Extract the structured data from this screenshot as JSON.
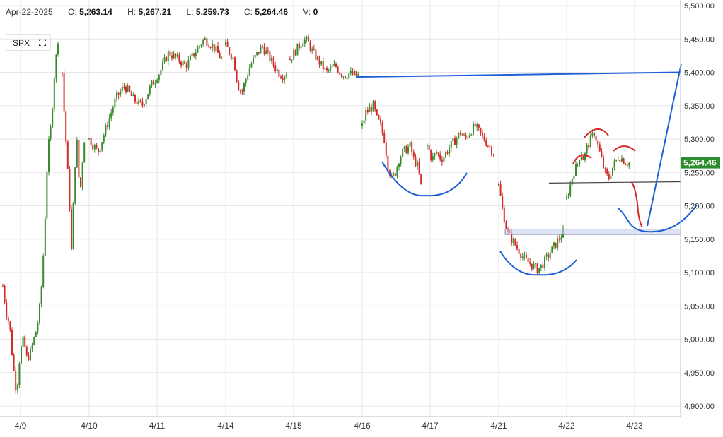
{
  "header": {
    "date": "Apr-22-2025",
    "open_label": "O:",
    "open": "5,263.14",
    "high_label": "H:",
    "high": "5,267.21",
    "low_label": "L:",
    "low": "5,259.73",
    "close_label": "C:",
    "close": "5,264.46",
    "volume_label": "V:",
    "volume": "0"
  },
  "symbol": {
    "name": "SPX",
    "expand_icon": "expand-icon"
  },
  "colors": {
    "up": "#3a8a2e",
    "down": "#d42a2a",
    "blue_annotation": "#1f5fd6",
    "red_annotation": "#d42a2a",
    "last_price_bg": "#2e8b2e",
    "grid": "#e6e6e6"
  },
  "chart_data": {
    "type": "candlestick",
    "ylim": [
      4890,
      5500
    ],
    "y_ticks": [
      "4,900.00",
      "4,950.00",
      "5,000.00",
      "5,050.00",
      "5,100.00",
      "5,150.00",
      "5,200.00",
      "5,250.00",
      "5,300.00",
      "5,350.00",
      "5,400.00",
      "5,450.00",
      "5,500.00"
    ],
    "x_ticks": [
      "4/9",
      "4/10",
      "4/11",
      "4/14",
      "4/15",
      "4/16",
      "4/17",
      "4/21",
      "4/22",
      "4/23"
    ],
    "last_price": "5,264.46",
    "grid": true,
    "session_closes": [
      {
        "session": "4/9",
        "points": [
          5080,
          5040,
          5020,
          4960,
          4920,
          4980,
          5000,
          4970,
          4980,
          5000,
          5020,
          5060,
          5150,
          5280,
          5320,
          5400,
          5450
        ]
      },
      {
        "session": "4/10",
        "points": [
          5400,
          5360,
          5330,
          5300,
          5280,
          5240,
          5220,
          5160,
          5130,
          5180,
          5220,
          5260,
          5300,
          5290,
          5250,
          5220,
          5230,
          5260,
          5280,
          5300
        ]
      },
      {
        "session": "4/11",
        "points": [
          5300,
          5280,
          5320,
          5360,
          5380,
          5360,
          5350,
          5380,
          5400,
          5430,
          5420,
          5410,
          5430,
          5450,
          5440,
          5420
        ]
      },
      {
        "session": "4/14",
        "points": [
          5440,
          5430,
          5420,
          5380,
          5370,
          5390,
          5410,
          5420,
          5430,
          5440,
          5430,
          5420,
          5410,
          5400,
          5395,
          5400
        ]
      },
      {
        "session": "4/15",
        "points": [
          5420,
          5430,
          5440,
          5450,
          5445,
          5430,
          5420,
          5410,
          5400,
          5405,
          5410,
          5400,
          5395,
          5398,
          5396,
          5395
        ]
      },
      {
        "session": "4/16",
        "points": [
          5320,
          5340,
          5345,
          5350,
          5330,
          5320,
          5300,
          5260,
          5240,
          5250,
          5270,
          5280,
          5285,
          5290,
          5270,
          5260,
          5230
        ]
      },
      {
        "session": "4/17",
        "points": [
          5290,
          5270,
          5280,
          5270,
          5280,
          5290,
          5300,
          5310,
          5300,
          5310,
          5320,
          5310,
          5300,
          5290,
          5280
        ]
      },
      {
        "session": "4/21",
        "points": [
          5230,
          5190,
          5160,
          5150,
          5140,
          5130,
          5120,
          5115,
          5110,
          5105,
          5110,
          5120,
          5130,
          5140,
          5150,
          5160
        ]
      },
      {
        "session": "4/22",
        "points": [
          5210,
          5230,
          5250,
          5260,
          5280,
          5270,
          5290,
          5300,
          5310,
          5290,
          5270,
          5250,
          5240,
          5255,
          5265,
          5275,
          5270,
          5265,
          5264
        ]
      }
    ]
  }
}
